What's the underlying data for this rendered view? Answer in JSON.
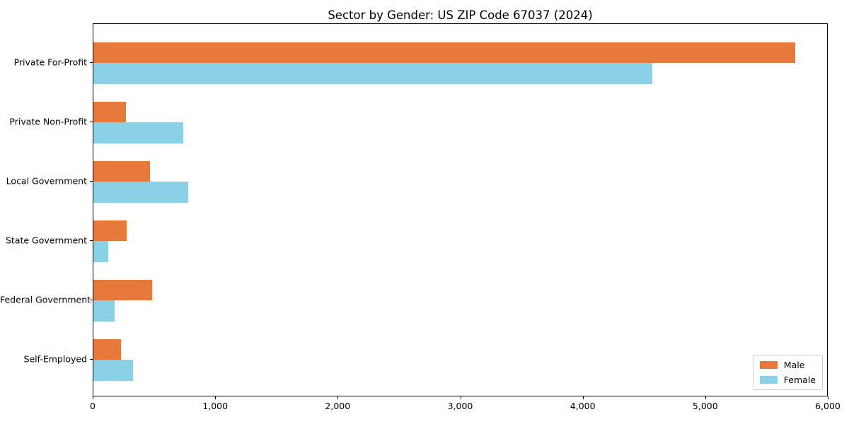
{
  "figure": {
    "background": "#ffffff",
    "spine_color": "#000000"
  },
  "chart_data": {
    "type": "bar",
    "orientation": "horizontal",
    "title": "Sector by Gender: US ZIP Code 67037 (2024)",
    "xlabel": "",
    "ylabel": "",
    "xlim": [
      0,
      6000
    ],
    "grid": false,
    "categories": [
      "Private For-Profit",
      "Private Non-Profit",
      "Local Government",
      "State Government",
      "Federal Government",
      "Self-Employed"
    ],
    "series": [
      {
        "name": "Male",
        "color": "#e8793d",
        "values": [
          5727,
          265,
          462,
          271,
          479,
          226
        ]
      },
      {
        "name": "Female",
        "color": "#8ad1e8",
        "values": [
          4560,
          733,
          775,
          121,
          174,
          324
        ]
      }
    ],
    "xticks": [
      {
        "value": 0,
        "label": "0"
      },
      {
        "value": 1000,
        "label": "1,000"
      },
      {
        "value": 2000,
        "label": "2,000"
      },
      {
        "value": 3000,
        "label": "3,000"
      },
      {
        "value": 4000,
        "label": "4,000"
      },
      {
        "value": 5000,
        "label": "5,000"
      },
      {
        "value": 6000,
        "label": "6,000"
      }
    ],
    "legend": {
      "position": "lower right",
      "entries": [
        "Male",
        "Female"
      ]
    }
  }
}
